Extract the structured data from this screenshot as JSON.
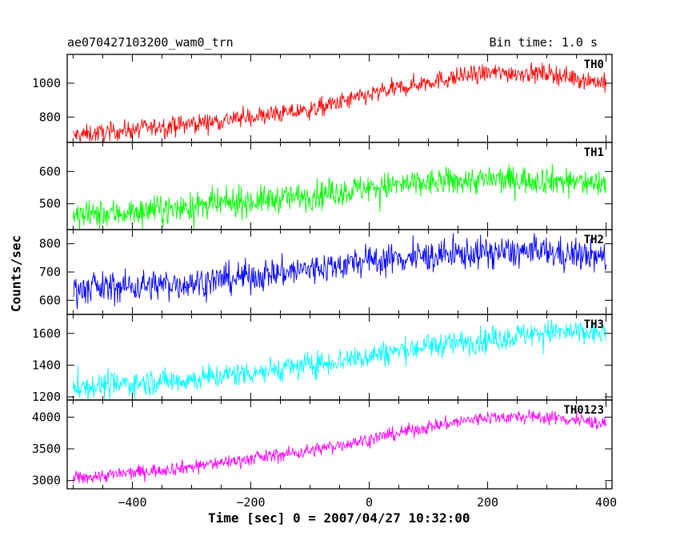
{
  "chart_data": {
    "type": "line",
    "title_left": "ae070427103200_wam0_trn",
    "title_right": "Bin time: 1.0 s",
    "xlabel": "Time [sec] 0 = 2007/04/27 10:32:00",
    "ylabel": "Counts/sec",
    "xlim": [
      -510,
      410
    ],
    "xticks": [
      -400,
      -200,
      0,
      200,
      400
    ],
    "x_range": [
      -500,
      400
    ],
    "grid": false,
    "panels": [
      {
        "name": "TH0",
        "color": "#ff0000",
        "ylim": [
          650,
          1170
        ],
        "yticks": [
          800,
          1000
        ],
        "trend_x": [
          -500,
          -300,
          -100,
          0,
          100,
          200,
          300,
          400
        ],
        "trend_y": [
          690,
          760,
          840,
          930,
          1010,
          1060,
          1060,
          1000
        ],
        "noise": 28
      },
      {
        "name": "TH1",
        "color": "#00ff00",
        "ylim": [
          420,
          690
        ],
        "yticks": [
          500,
          600
        ],
        "trend_x": [
          -500,
          -300,
          -100,
          0,
          100,
          200,
          300,
          400
        ],
        "trend_y": [
          460,
          490,
          525,
          550,
          565,
          575,
          575,
          560
        ],
        "noise": 22
      },
      {
        "name": "TH2",
        "color": "#0000ff",
        "ylim": [
          550,
          850
        ],
        "yticks": [
          600,
          700,
          800
        ],
        "trend_x": [
          -500,
          -300,
          -100,
          0,
          100,
          200,
          300,
          400
        ],
        "trend_y": [
          640,
          660,
          710,
          740,
          755,
          770,
          770,
          750
        ],
        "noise": 28
      },
      {
        "name": "TH3",
        "color": "#00ffff",
        "ylim": [
          1180,
          1720
        ],
        "yticks": [
          1200,
          1400,
          1600
        ],
        "trend_x": [
          -500,
          -300,
          -100,
          0,
          100,
          200,
          300,
          400
        ],
        "trend_y": [
          1260,
          1310,
          1400,
          1460,
          1520,
          1560,
          1610,
          1600
        ],
        "noise": 40
      },
      {
        "name": "TH0123",
        "color": "#ff00ff",
        "ylim": [
          2870,
          4270
        ],
        "yticks": [
          3000,
          3500,
          4000
        ],
        "trend_x": [
          -500,
          -300,
          -100,
          0,
          100,
          200,
          300,
          400
        ],
        "trend_y": [
          3030,
          3220,
          3470,
          3650,
          3850,
          4000,
          4000,
          3900
        ],
        "noise": 55
      }
    ]
  }
}
